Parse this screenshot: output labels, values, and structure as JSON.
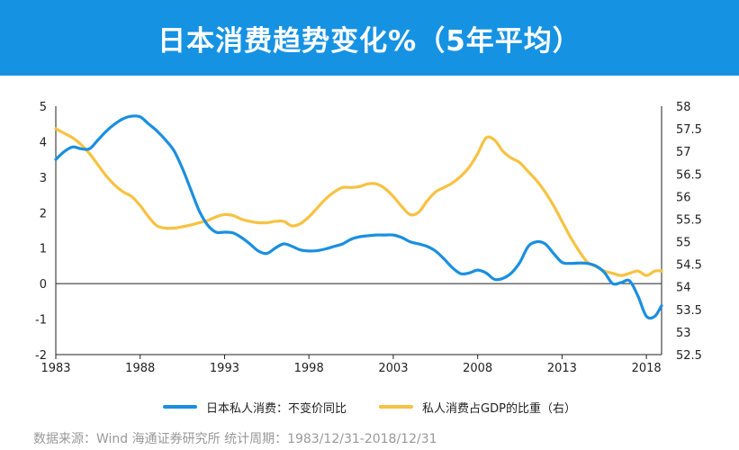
{
  "title": "日本消费趋势变化%（5年平均）",
  "source": "数据来源：Wind 海通证券研究所 统计周期：1983/12/31-2018/12/31",
  "colors": {
    "banner": "#1692e3",
    "series1": "#1a8fe0",
    "series2": "#f7c242"
  },
  "chart_data": {
    "type": "line",
    "x_tick_labels": [
      "1983",
      "1988",
      "1993",
      "1998",
      "2003",
      "2008",
      "2013",
      "2018"
    ],
    "xlim": [
      1983,
      2018.9
    ],
    "ylim_left": [
      -2,
      5
    ],
    "ylim_right": [
      52.5,
      58
    ],
    "left_ticks": [
      "-2",
      "-1",
      "0",
      "1",
      "2",
      "3",
      "4",
      "5"
    ],
    "right_ticks": [
      "52.5",
      "53",
      "53.5",
      "54",
      "54.5",
      "55",
      "55.5",
      "56",
      "56.5",
      "57",
      "57.5",
      "58"
    ],
    "zero_line": true,
    "grid": false,
    "legend_position": "bottom",
    "series": [
      {
        "name": "日本私人消费：不变价同比",
        "axis": "left",
        "x": [
          1983,
          1983.5,
          1984,
          1984.5,
          1985,
          1985.5,
          1986,
          1986.5,
          1987,
          1987.5,
          1988,
          1988.5,
          1989,
          1989.5,
          1990,
          1990.5,
          1991,
          1991.5,
          1992,
          1992.5,
          1993,
          1993.5,
          1994,
          1994.5,
          1995,
          1995.5,
          1996,
          1996.5,
          1997,
          1997.5,
          1998,
          1998.5,
          1999,
          1999.5,
          2000,
          2000.5,
          2001,
          2001.5,
          2002,
          2002.5,
          2003,
          2003.5,
          2004,
          2004.5,
          2005,
          2005.5,
          2006,
          2006.5,
          2007,
          2007.5,
          2008,
          2008.5,
          2009,
          2009.5,
          2010,
          2010.5,
          2011,
          2011.5,
          2012,
          2012.5,
          2013,
          2013.5,
          2014,
          2014.5,
          2015,
          2015.5,
          2016,
          2016.5,
          2017,
          2017.5,
          2018,
          2018.5,
          2018.9
        ],
        "y": [
          3.5,
          3.72,
          3.85,
          3.8,
          3.8,
          4.05,
          4.3,
          4.5,
          4.65,
          4.72,
          4.7,
          4.5,
          4.3,
          4.05,
          3.75,
          3.25,
          2.65,
          2.05,
          1.65,
          1.45,
          1.45,
          1.43,
          1.3,
          1.12,
          0.92,
          0.85,
          1.0,
          1.12,
          1.05,
          0.95,
          0.92,
          0.93,
          0.98,
          1.05,
          1.12,
          1.25,
          1.32,
          1.35,
          1.37,
          1.37,
          1.37,
          1.3,
          1.18,
          1.12,
          1.05,
          0.92,
          0.7,
          0.45,
          0.28,
          0.3,
          0.38,
          0.3,
          0.12,
          0.15,
          0.3,
          0.6,
          1.05,
          1.18,
          1.12,
          0.85,
          0.6,
          0.57,
          0.58,
          0.57,
          0.5,
          0.32,
          0.0,
          0.03,
          0.08,
          -0.35,
          -0.92,
          -0.92,
          -0.62
        ]
      },
      {
        "name": "私人消费占GDP的比重（右）",
        "axis": "right",
        "x": [
          1983,
          1983.5,
          1984,
          1984.5,
          1985,
          1985.5,
          1986,
          1986.5,
          1987,
          1987.5,
          1988,
          1988.5,
          1989,
          1989.5,
          1990,
          1990.5,
          1991,
          1991.5,
          1992,
          1992.5,
          1993,
          1993.5,
          1994,
          1994.5,
          1995,
          1995.5,
          1996,
          1996.5,
          1997,
          1997.5,
          1998,
          1998.5,
          1999,
          1999.5,
          2000,
          2000.5,
          2001,
          2001.5,
          2002,
          2002.5,
          2003,
          2003.5,
          2004,
          2004.5,
          2005,
          2005.5,
          2006,
          2006.5,
          2007,
          2007.5,
          2008,
          2008.5,
          2009,
          2009.5,
          2010,
          2010.5,
          2011,
          2011.5,
          2012,
          2012.5,
          2013,
          2013.5,
          2014,
          2014.5,
          2015,
          2015.5,
          2016,
          2016.5,
          2017,
          2017.5,
          2018,
          2018.5,
          2018.9
        ],
        "y": [
          57.5,
          57.4,
          57.3,
          57.15,
          56.95,
          56.7,
          56.45,
          56.25,
          56.1,
          56.0,
          55.8,
          55.55,
          55.35,
          55.3,
          55.3,
          55.33,
          55.37,
          55.42,
          55.47,
          55.55,
          55.6,
          55.58,
          55.5,
          55.45,
          55.42,
          55.42,
          55.45,
          55.45,
          55.35,
          55.4,
          55.55,
          55.75,
          55.95,
          56.1,
          56.2,
          56.2,
          56.22,
          56.28,
          56.28,
          56.18,
          56.0,
          55.78,
          55.6,
          55.65,
          55.9,
          56.1,
          56.2,
          56.3,
          56.45,
          56.65,
          56.95,
          57.3,
          57.25,
          57.0,
          56.85,
          56.75,
          56.55,
          56.35,
          56.1,
          55.8,
          55.45,
          55.1,
          54.8,
          54.55,
          54.45,
          54.35,
          54.3,
          54.25,
          54.3,
          54.35,
          54.25,
          54.35,
          54.35
        ]
      }
    ]
  }
}
